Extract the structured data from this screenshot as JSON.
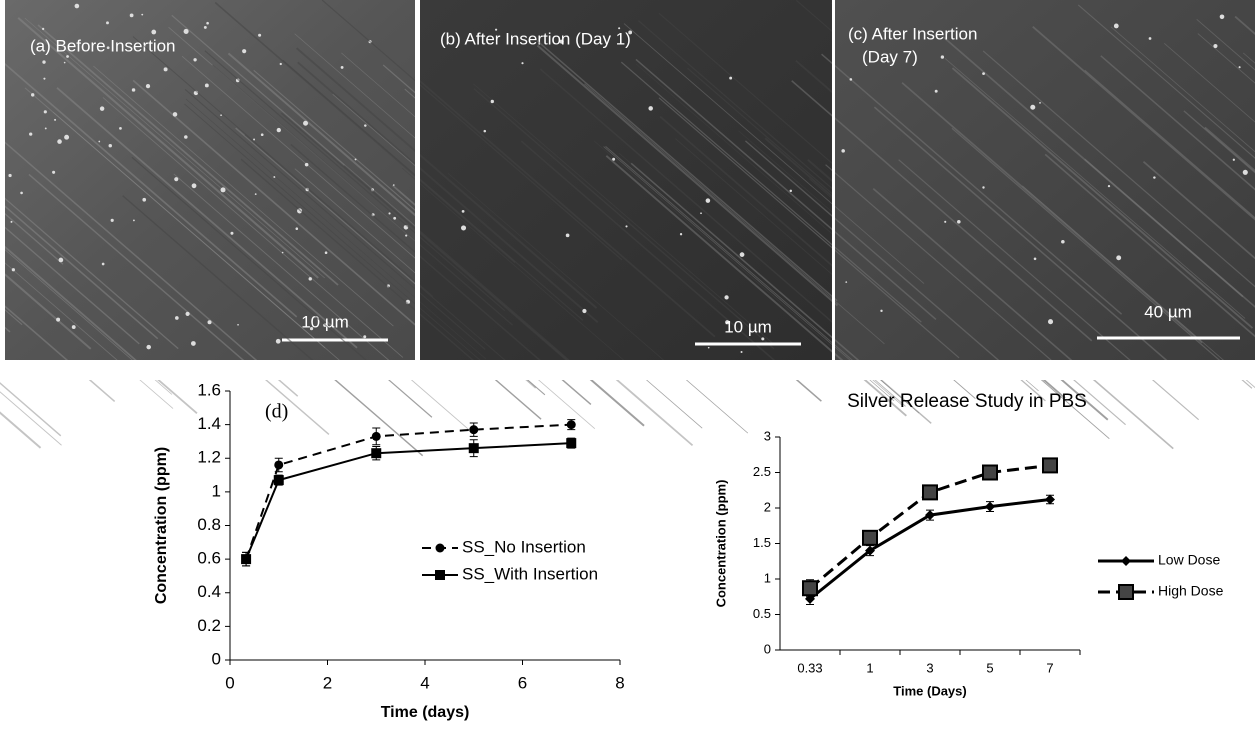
{
  "panels": [
    {
      "label_lines": [
        "(a) Before Insertion"
      ],
      "scale_bar": "10 µm"
    },
    {
      "label_lines": [
        "(b) After Insertion (Day 1)"
      ],
      "scale_bar": "10 µm"
    },
    {
      "label_lines": [
        "(c) After Insertion",
        "(Day 7)"
      ],
      "scale_bar": "40 µm"
    }
  ],
  "chart_data": [
    {
      "type": "line",
      "annotation": "(d)",
      "x_label": "Time (days)",
      "y_label": "Concentration (ppm)",
      "x": [
        0.33,
        1,
        3,
        5,
        7
      ],
      "series": [
        {
          "name": "SS_No Insertion",
          "color": "#000000",
          "dash": true,
          "marker": "circle",
          "values": [
            0.6,
            1.16,
            1.33,
            1.37,
            1.4
          ],
          "errors": [
            0.04,
            0.04,
            0.05,
            0.04,
            0.03
          ]
        },
        {
          "name": "SS_With Insertion",
          "color": "#000000",
          "dash": false,
          "marker": "square",
          "values": [
            0.6,
            1.07,
            1.23,
            1.26,
            1.29
          ],
          "errors": [
            0.04,
            0.03,
            0.04,
            0.05,
            0.03
          ]
        }
      ],
      "xlim": [
        0,
        8
      ],
      "xticks": [
        0,
        2,
        4,
        6,
        8
      ],
      "ylim": [
        0,
        1.6
      ],
      "yticks": [
        0,
        0.2,
        0.4,
        0.6,
        0.8,
        1,
        1.2,
        1.4,
        1.6
      ],
      "legend": "center-right"
    },
    {
      "type": "category-line",
      "title": "Silver Release Study in PBS",
      "x_label": "Time (Days)",
      "y_label": "Concentration (ppm)",
      "categories": [
        "0.33",
        "1",
        "3",
        "5",
        "7"
      ],
      "series": [
        {
          "name": "Low Dose",
          "color": "#000000",
          "dash": false,
          "marker": "diamond",
          "values": [
            0.72,
            1.4,
            1.9,
            2.02,
            2.12
          ],
          "errors": [
            0.08,
            0.07,
            0.07,
            0.07,
            0.06
          ]
        },
        {
          "name": "High Dose",
          "color": "#000000",
          "dash": true,
          "marker": "square",
          "values": [
            0.87,
            1.58,
            2.22,
            2.5,
            2.6
          ],
          "errors": [
            0.12,
            0.05,
            0.05,
            0.05,
            0.05
          ]
        }
      ],
      "ylim": [
        0,
        3
      ],
      "yticks": [
        0,
        0.5,
        1,
        1.5,
        2,
        2.5,
        3
      ],
      "legend": "outside-right"
    }
  ]
}
